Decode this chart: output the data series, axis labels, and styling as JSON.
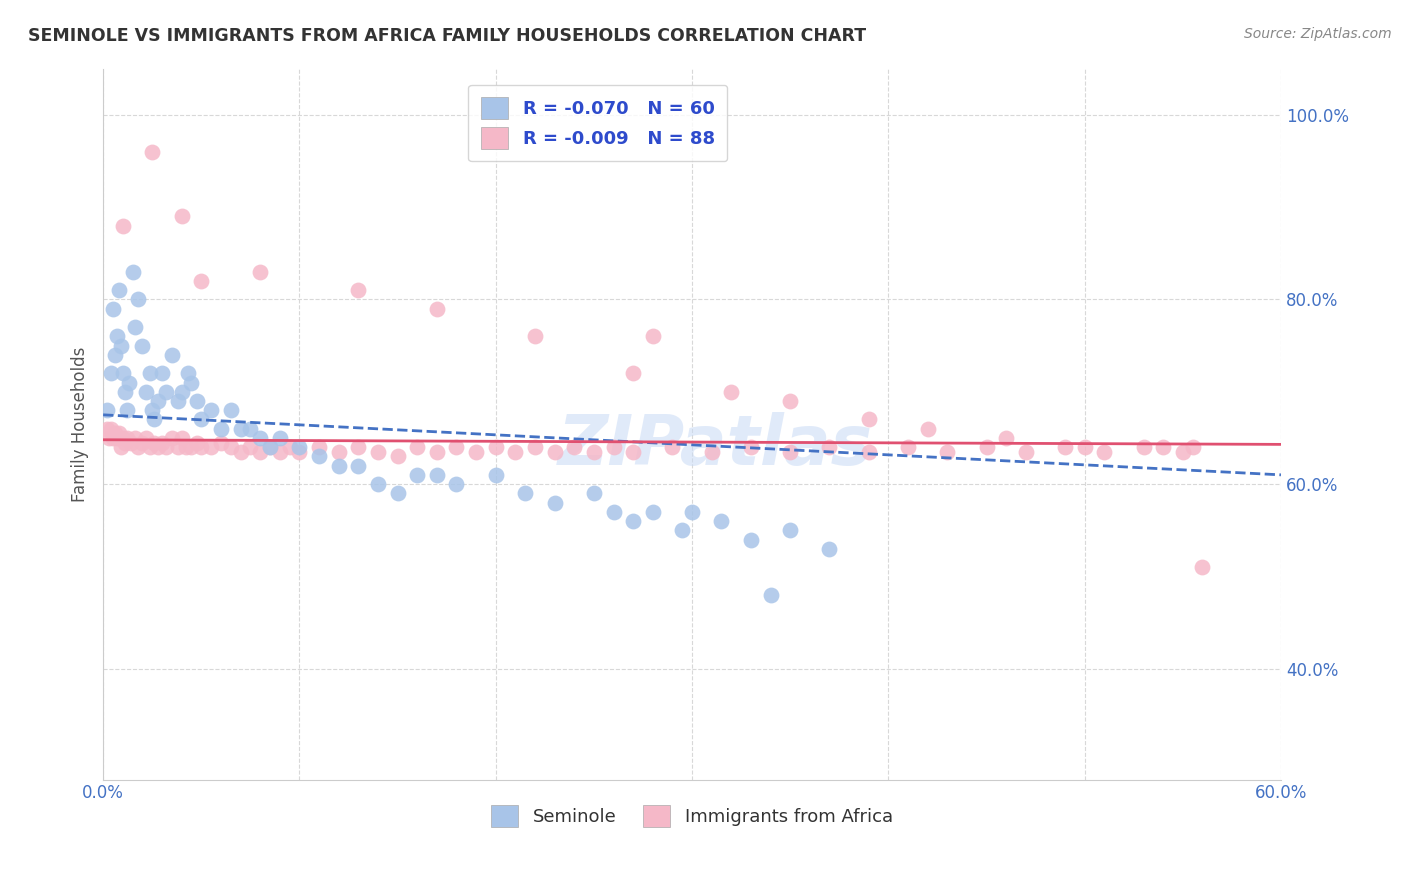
{
  "title": "SEMINOLE VS IMMIGRANTS FROM AFRICA FAMILY HOUSEHOLDS CORRELATION CHART",
  "source": "Source: ZipAtlas.com",
  "ylabel": "Family Households",
  "xlabel_seminole": "Seminole",
  "xlabel_africa": "Immigrants from Africa",
  "legend_blue_r": "R = -0.070",
  "legend_blue_n": "N = 60",
  "legend_pink_r": "R = -0.009",
  "legend_pink_n": "N = 88",
  "blue_color": "#a8c4e8",
  "pink_color": "#f5b8c8",
  "blue_line_color": "#4472c4",
  "pink_line_color": "#e05070",
  "legend_text_color": "#2e4bcc",
  "xmin": 0.0,
  "xmax": 0.6,
  "ymin": 0.28,
  "ymax": 1.05,
  "yticks": [
    0.4,
    0.6,
    0.8,
    1.0
  ],
  "ytick_labels": [
    "40.0%",
    "60.0%",
    "80.0%",
    "100.0%"
  ],
  "xticks": [
    0.0,
    0.1,
    0.2,
    0.3,
    0.4,
    0.5,
    0.6
  ],
  "xtick_labels": [
    "0.0%",
    "",
    "",
    "",
    "",
    "",
    "60.0%"
  ],
  "blue_x": [
    0.002,
    0.004,
    0.005,
    0.006,
    0.007,
    0.008,
    0.009,
    0.01,
    0.011,
    0.012,
    0.013,
    0.015,
    0.016,
    0.018,
    0.02,
    0.022,
    0.024,
    0.025,
    0.026,
    0.028,
    0.03,
    0.032,
    0.035,
    0.038,
    0.04,
    0.043,
    0.045,
    0.048,
    0.05,
    0.055,
    0.06,
    0.065,
    0.07,
    0.075,
    0.08,
    0.085,
    0.09,
    0.1,
    0.11,
    0.12,
    0.13,
    0.14,
    0.15,
    0.16,
    0.17,
    0.18,
    0.2,
    0.215,
    0.23,
    0.25,
    0.26,
    0.27,
    0.28,
    0.295,
    0.3,
    0.315,
    0.33,
    0.34,
    0.35,
    0.37
  ],
  "blue_y": [
    0.68,
    0.72,
    0.79,
    0.74,
    0.76,
    0.81,
    0.75,
    0.72,
    0.7,
    0.68,
    0.71,
    0.83,
    0.77,
    0.8,
    0.75,
    0.7,
    0.72,
    0.68,
    0.67,
    0.69,
    0.72,
    0.7,
    0.74,
    0.69,
    0.7,
    0.72,
    0.71,
    0.69,
    0.67,
    0.68,
    0.66,
    0.68,
    0.66,
    0.66,
    0.65,
    0.64,
    0.65,
    0.64,
    0.63,
    0.62,
    0.62,
    0.6,
    0.59,
    0.61,
    0.61,
    0.6,
    0.61,
    0.59,
    0.58,
    0.59,
    0.57,
    0.56,
    0.57,
    0.55,
    0.57,
    0.56,
    0.54,
    0.48,
    0.55,
    0.53
  ],
  "pink_x": [
    0.002,
    0.003,
    0.004,
    0.005,
    0.006,
    0.007,
    0.008,
    0.009,
    0.01,
    0.011,
    0.012,
    0.014,
    0.016,
    0.018,
    0.02,
    0.022,
    0.024,
    0.026,
    0.028,
    0.03,
    0.032,
    0.035,
    0.038,
    0.04,
    0.042,
    0.045,
    0.048,
    0.05,
    0.055,
    0.06,
    0.065,
    0.07,
    0.075,
    0.08,
    0.085,
    0.09,
    0.095,
    0.1,
    0.11,
    0.12,
    0.13,
    0.14,
    0.15,
    0.16,
    0.17,
    0.18,
    0.19,
    0.2,
    0.21,
    0.22,
    0.23,
    0.24,
    0.25,
    0.26,
    0.27,
    0.29,
    0.31,
    0.33,
    0.35,
    0.37,
    0.39,
    0.41,
    0.43,
    0.45,
    0.47,
    0.49,
    0.51,
    0.53,
    0.55,
    0.56,
    0.025,
    0.04,
    0.08,
    0.13,
    0.17,
    0.22,
    0.27,
    0.32,
    0.28,
    0.35,
    0.39,
    0.42,
    0.46,
    0.5,
    0.54,
    0.555,
    0.01,
    0.05
  ],
  "pink_y": [
    0.66,
    0.65,
    0.66,
    0.65,
    0.655,
    0.65,
    0.655,
    0.64,
    0.65,
    0.645,
    0.65,
    0.645,
    0.65,
    0.64,
    0.645,
    0.65,
    0.64,
    0.645,
    0.64,
    0.645,
    0.64,
    0.65,
    0.64,
    0.65,
    0.64,
    0.64,
    0.645,
    0.64,
    0.64,
    0.645,
    0.64,
    0.635,
    0.64,
    0.635,
    0.64,
    0.635,
    0.64,
    0.635,
    0.64,
    0.635,
    0.64,
    0.635,
    0.63,
    0.64,
    0.635,
    0.64,
    0.635,
    0.64,
    0.635,
    0.64,
    0.635,
    0.64,
    0.635,
    0.64,
    0.635,
    0.64,
    0.635,
    0.64,
    0.635,
    0.64,
    0.635,
    0.64,
    0.635,
    0.64,
    0.635,
    0.64,
    0.635,
    0.64,
    0.635,
    0.51,
    0.96,
    0.89,
    0.83,
    0.81,
    0.79,
    0.76,
    0.72,
    0.7,
    0.76,
    0.69,
    0.67,
    0.66,
    0.65,
    0.64,
    0.64,
    0.64,
    0.88,
    0.82
  ],
  "watermark": "ZIPatlas",
  "background_color": "#ffffff",
  "grid_color": "#d8d8d8"
}
